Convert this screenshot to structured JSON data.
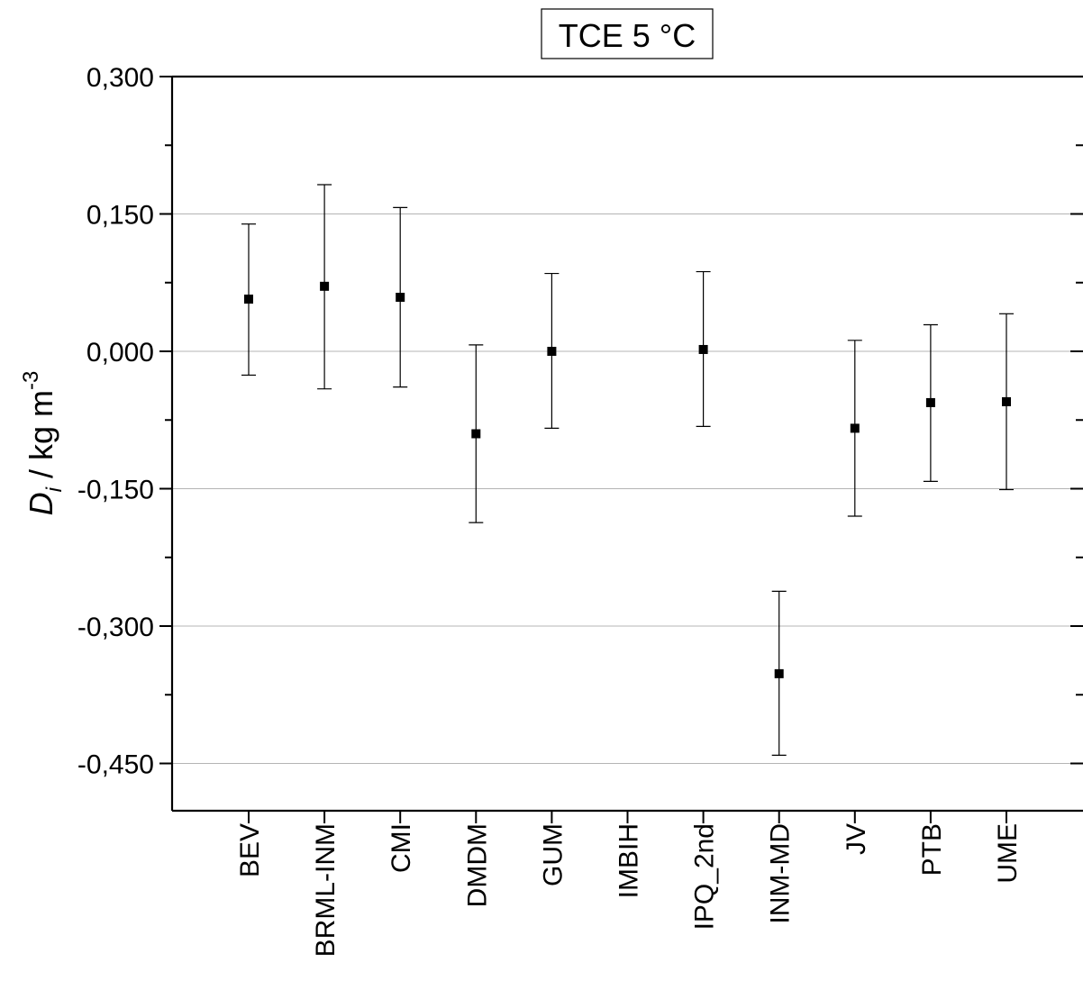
{
  "chart_data": {
    "type": "scatter",
    "title": "TCE 5 °C",
    "ylabel": {
      "main": "D",
      "sub": "i",
      "unit": " / kg m",
      "sup": "-3"
    },
    "xlabel": "",
    "categories": [
      "BEV",
      "BRML-INM",
      "CMI",
      "DMDM",
      "GUM",
      "IMBIH",
      "IPQ_2nd",
      "INM-MD",
      "JV",
      "PTB",
      "UME"
    ],
    "series": [
      {
        "values": [
          0.057,
          0.071,
          0.059,
          -0.09,
          0.0,
          null,
          0.002,
          -0.352,
          -0.084,
          -0.056,
          -0.055
        ],
        "err_low": [
          -0.026,
          -0.041,
          -0.039,
          -0.187,
          -0.084,
          null,
          -0.082,
          -0.441,
          -0.18,
          -0.142,
          -0.151
        ],
        "err_high": [
          0.139,
          0.182,
          0.157,
          0.007,
          0.085,
          null,
          0.087,
          -0.262,
          0.012,
          0.029,
          0.041
        ]
      }
    ],
    "ylim": [
      -0.5,
      0.3
    ],
    "yticks": [
      0.3,
      0.15,
      0.0,
      -0.15,
      -0.3,
      -0.45
    ],
    "ytick_labels": [
      "0,300",
      "0,150",
      "0,000",
      "-0,150",
      "-0,300",
      "-0,450"
    ],
    "grid": "horizontal at labeled ticks",
    "legend": "none"
  }
}
